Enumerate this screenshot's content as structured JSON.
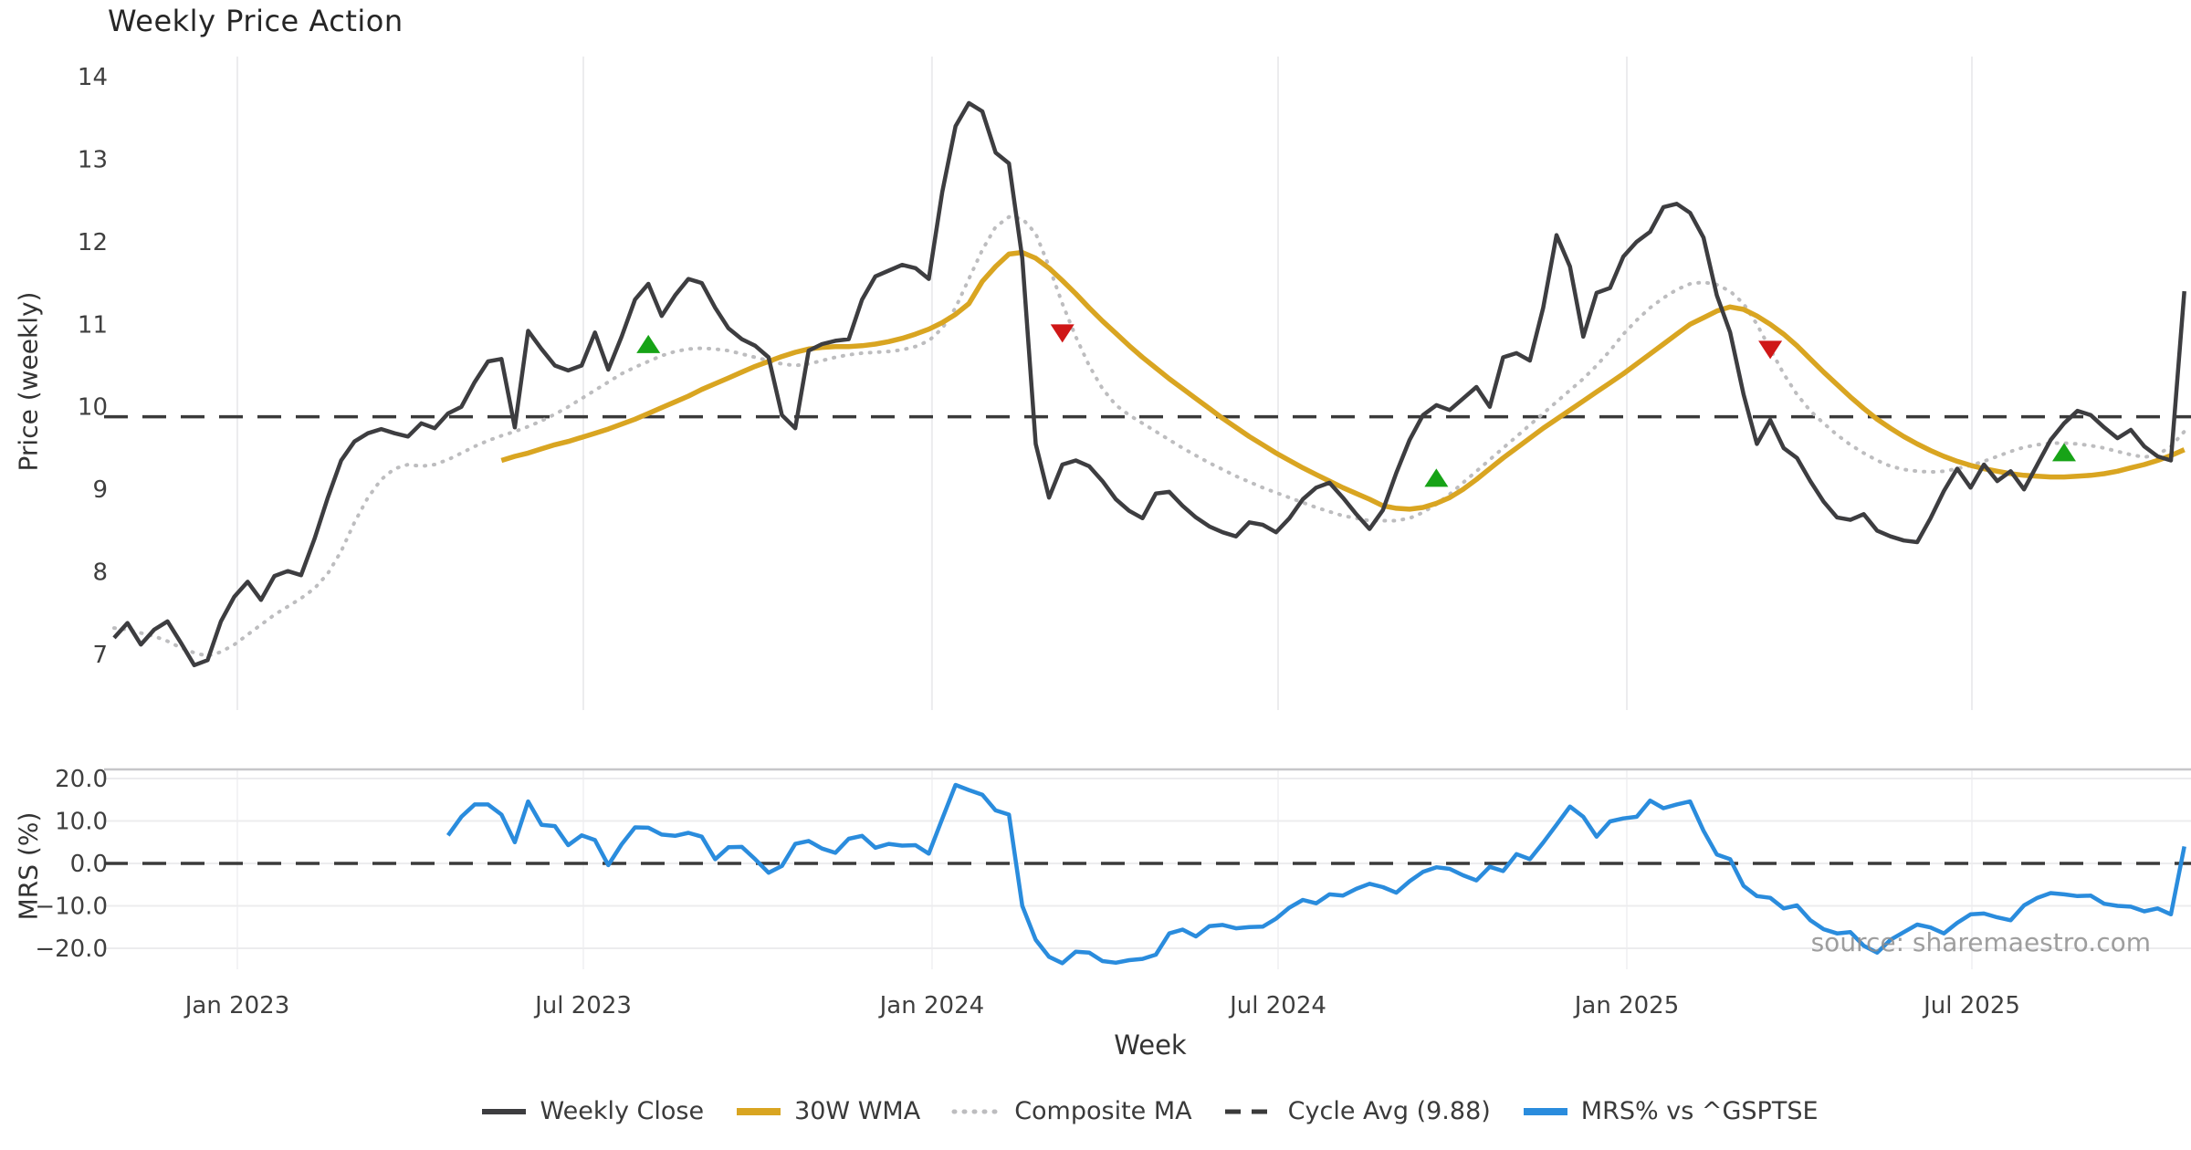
{
  "title": "Weekly Price Action",
  "source_note": "source: sharemaestro.com",
  "colors": {
    "weekly_close": "#3d3d40",
    "wma_30w": "#d9a521",
    "composite_ma": "#bdbdbf",
    "cycle_avg": "#3a3a3a",
    "mrs_line": "#2a8cdd",
    "buy_marker": "#17a317",
    "sell_marker": "#cf1717",
    "grid": "#ececee",
    "grid_light": "#f3f3f5",
    "spine": "#c6c6c9",
    "tick_text": "#3f3f3f",
    "watermark": "#8e8e8e"
  },
  "x_axis": {
    "label": "Week",
    "ticks": [
      {
        "label": "Jan 2023",
        "week": 9.23
      },
      {
        "label": "Jul 2023",
        "week": 35.13
      },
      {
        "label": "Jan 2024",
        "week": 61.24
      },
      {
        "label": "Jul 2024",
        "week": 87.15
      },
      {
        "label": "Jan 2025",
        "week": 113.26
      },
      {
        "label": "Jul 2025",
        "week": 139.1
      }
    ],
    "total_weeks": 156
  },
  "legend": [
    {
      "label": "Weekly Close",
      "color": "#3d3d40",
      "style": "solid"
    },
    {
      "label": "30W WMA",
      "color": "#d9a521",
      "style": "solid-thick"
    },
    {
      "label": "Composite MA",
      "color": "#bdbdbf",
      "style": "dotted"
    },
    {
      "label": "Cycle Avg (9.88)",
      "color": "#3a3a3a",
      "style": "dashed"
    },
    {
      "label": "MRS% vs ^GSPTSE",
      "color": "#2a8cdd",
      "style": "solid-thick"
    }
  ],
  "chart_data": [
    {
      "type": "line",
      "panel": "price",
      "title": "Weekly Price Action",
      "ylabel": "Price (weekly)",
      "ylim": [
        6.36,
        14.23
      ],
      "yticks": [
        14,
        13,
        12,
        11,
        10,
        9,
        8,
        7
      ],
      "cycle_avg": 9.88,
      "grid": "x-only",
      "series": [
        {
          "name": "Weekly Close",
          "start_week": 0,
          "values": [
            7.2,
            7.38,
            7.12,
            7.3,
            7.4,
            7.14,
            6.87,
            6.93,
            7.4,
            7.7,
            7.88,
            7.66,
            7.95,
            8.01,
            7.96,
            8.4,
            8.9,
            9.35,
            9.58,
            9.68,
            9.73,
            9.68,
            9.64,
            9.8,
            9.74,
            9.92,
            10.0,
            10.3,
            10.55,
            10.58,
            9.75,
            10.92,
            10.7,
            10.5,
            10.44,
            10.5,
            10.9,
            10.45,
            10.85,
            11.3,
            11.49,
            11.1,
            11.35,
            11.55,
            11.5,
            11.2,
            10.95,
            10.82,
            10.74,
            10.6,
            9.9,
            9.74,
            10.68,
            10.76,
            10.8,
            10.82,
            11.3,
            11.58,
            11.65,
            11.72,
            11.68,
            11.55,
            12.6,
            13.4,
            13.68,
            13.58,
            13.08,
            12.95,
            11.8,
            9.55,
            8.9,
            9.3,
            9.35,
            9.28,
            9.1,
            8.88,
            8.74,
            8.65,
            8.95,
            8.97,
            8.8,
            8.66,
            8.55,
            8.48,
            8.43,
            8.6,
            8.57,
            8.48,
            8.65,
            8.88,
            9.02,
            9.08,
            8.9,
            8.7,
            8.52,
            8.75,
            9.2,
            9.6,
            9.9,
            10.02,
            9.96,
            10.1,
            10.24,
            10.0,
            10.6,
            10.65,
            10.56,
            11.2,
            12.08,
            11.7,
            10.85,
            11.38,
            11.44,
            11.82,
            12.0,
            12.12,
            12.42,
            12.46,
            12.35,
            12.05,
            11.35,
            10.9,
            10.15,
            9.55,
            9.84,
            9.5,
            9.38,
            9.1,
            8.85,
            8.66,
            8.63,
            8.7,
            8.5,
            8.43,
            8.38,
            8.36,
            8.65,
            8.98,
            9.25,
            9.02,
            9.3,
            9.1,
            9.22,
            9.0,
            9.3,
            9.6,
            9.8,
            9.95,
            9.9,
            9.75,
            9.62,
            9.72,
            9.52,
            9.4,
            9.35,
            11.4
          ]
        },
        {
          "name": "30W WMA",
          "start_week": 29,
          "values": [
            9.35,
            9.4,
            9.44,
            9.49,
            9.54,
            9.58,
            9.63,
            9.68,
            9.73,
            9.79,
            9.85,
            9.92,
            9.99,
            10.06,
            10.13,
            10.21,
            10.28,
            10.35,
            10.42,
            10.49,
            10.55,
            10.61,
            10.66,
            10.7,
            10.72,
            10.73,
            10.73,
            10.74,
            10.76,
            10.79,
            10.83,
            10.88,
            10.94,
            11.02,
            11.12,
            11.25,
            11.52,
            11.7,
            11.85,
            11.87,
            11.8,
            11.68,
            11.53,
            11.37,
            11.2,
            11.04,
            10.89,
            10.74,
            10.6,
            10.47,
            10.34,
            10.22,
            10.1,
            9.98,
            9.86,
            9.75,
            9.64,
            9.54,
            9.44,
            9.35,
            9.26,
            9.18,
            9.1,
            9.02,
            8.95,
            8.88,
            8.8,
            8.77,
            8.76,
            8.78,
            8.83,
            8.9,
            9.0,
            9.12,
            9.25,
            9.38,
            9.5,
            9.62,
            9.74,
            9.85,
            9.96,
            10.07,
            10.18,
            10.29,
            10.4,
            10.52,
            10.64,
            10.76,
            10.88,
            11.0,
            11.08,
            11.16,
            11.21,
            11.18,
            11.1,
            11.0,
            10.88,
            10.74,
            10.58,
            10.42,
            10.27,
            10.12,
            9.98,
            9.85,
            9.74,
            9.64,
            9.55,
            9.47,
            9.4,
            9.34,
            9.29,
            9.25,
            9.22,
            9.19,
            9.17,
            9.16,
            9.15,
            9.15,
            9.16,
            9.17,
            9.19,
            9.22,
            9.26,
            9.3,
            9.35,
            9.41,
            9.48
          ]
        },
        {
          "name": "Composite MA",
          "start_week": 0,
          "values": [
            7.32,
            7.3,
            7.26,
            7.22,
            7.16,
            7.08,
            7.02,
            6.98,
            7.03,
            7.12,
            7.24,
            7.36,
            7.48,
            7.58,
            7.68,
            7.8,
            7.98,
            8.25,
            8.6,
            8.9,
            9.12,
            9.25,
            9.3,
            9.28,
            9.3,
            9.36,
            9.44,
            9.52,
            9.59,
            9.65,
            9.7,
            9.76,
            9.83,
            9.91,
            10.0,
            10.1,
            10.2,
            10.3,
            10.4,
            10.48,
            10.55,
            10.62,
            10.67,
            10.7,
            10.71,
            10.7,
            10.68,
            10.64,
            10.6,
            10.56,
            10.52,
            10.5,
            10.52,
            10.56,
            10.6,
            10.63,
            10.65,
            10.66,
            10.67,
            10.69,
            10.73,
            10.8,
            10.95,
            11.2,
            11.55,
            11.9,
            12.18,
            12.3,
            12.28,
            12.1,
            11.7,
            11.25,
            10.85,
            10.5,
            10.22,
            10.02,
            9.9,
            9.8,
            9.7,
            9.6,
            9.5,
            9.41,
            9.32,
            9.24,
            9.16,
            9.09,
            9.02,
            8.96,
            8.9,
            8.84,
            8.78,
            8.73,
            8.68,
            8.65,
            8.62,
            8.62,
            8.62,
            8.65,
            8.72,
            8.82,
            8.94,
            9.08,
            9.22,
            9.36,
            9.5,
            9.64,
            9.78,
            9.92,
            10.06,
            10.2,
            10.34,
            10.5,
            10.68,
            10.88,
            11.05,
            11.2,
            11.32,
            11.42,
            11.49,
            11.51,
            11.48,
            11.4,
            11.25,
            11.0,
            10.7,
            10.4,
            10.15,
            9.95,
            9.8,
            9.66,
            9.54,
            9.44,
            9.35,
            9.28,
            9.24,
            9.22,
            9.21,
            9.22,
            9.25,
            9.29,
            9.34,
            9.4,
            9.46,
            9.51,
            9.54,
            9.56,
            9.56,
            9.55,
            9.53,
            9.5,
            9.46,
            9.42,
            9.39,
            9.42,
            9.52,
            9.7
          ]
        }
      ],
      "signals": {
        "buy": [
          {
            "week": 40,
            "value": 10.75
          },
          {
            "week": 99,
            "value": 9.13
          },
          {
            "week": 146,
            "value": 9.44
          }
        ],
        "sell": [
          {
            "week": 71,
            "value": 10.9
          },
          {
            "week": 124,
            "value": 10.7
          }
        ]
      }
    },
    {
      "type": "line",
      "panel": "mrs",
      "ylabel": "MRS (%)",
      "ylim": [
        -24.9,
        22.2
      ],
      "yticks": [
        20.0,
        10.0,
        0.0,
        -10.0,
        -20.0
      ],
      "ytick_labels": [
        "20.0",
        "10.0",
        "0.0",
        "−10.0",
        "−20.0"
      ],
      "zero_line": 0,
      "grid": "both",
      "series": [
        {
          "name": "MRS% vs ^GSPTSE",
          "start_week": 25,
          "values": [
            6.6,
            11.0,
            13.9,
            13.9,
            11.5,
            5.0,
            14.6,
            9.1,
            8.8,
            4.3,
            6.6,
            5.5,
            -0.4,
            4.5,
            8.5,
            8.4,
            6.8,
            6.5,
            7.2,
            6.3,
            1.0,
            3.8,
            3.9,
            1.0,
            -2.2,
            -0.6,
            4.6,
            5.3,
            3.5,
            2.5,
            5.8,
            6.5,
            3.7,
            4.6,
            4.2,
            4.3,
            2.3,
            10.5,
            18.5,
            17.3,
            16.2,
            12.5,
            11.5,
            -10.0,
            -18.0,
            -22.0,
            -23.5,
            -20.8,
            -21.0,
            -23.0,
            -23.4,
            -22.8,
            -22.5,
            -21.5,
            -16.5,
            -15.6,
            -17.2,
            -14.8,
            -14.5,
            -15.3,
            -15.0,
            -14.9,
            -13.0,
            -10.4,
            -8.6,
            -9.4,
            -7.3,
            -7.6,
            -6.0,
            -4.8,
            -5.6,
            -6.9,
            -4.2,
            -2.0,
            -0.9,
            -1.3,
            -2.8,
            -4.0,
            -0.8,
            -1.8,
            2.2,
            1.0,
            4.9,
            9.1,
            13.4,
            11.0,
            6.3,
            9.9,
            10.6,
            11.0,
            14.8,
            13.0,
            13.9,
            14.6,
            7.7,
            2.1,
            1.0,
            -5.3,
            -7.7,
            -8.1,
            -10.6,
            -9.9,
            -13.4,
            -15.5,
            -16.5,
            -16.2,
            -19.4,
            -21.0,
            -18.0,
            -16.2,
            -14.4,
            -15.1,
            -16.5,
            -14.0,
            -12.0,
            -11.8,
            -12.7,
            -13.4,
            -9.9,
            -8.1,
            -7.0,
            -7.3,
            -7.7,
            -7.6,
            -9.5,
            -10.0,
            -10.2,
            -11.3,
            -10.6,
            -12.0,
            4.0
          ]
        }
      ]
    }
  ]
}
